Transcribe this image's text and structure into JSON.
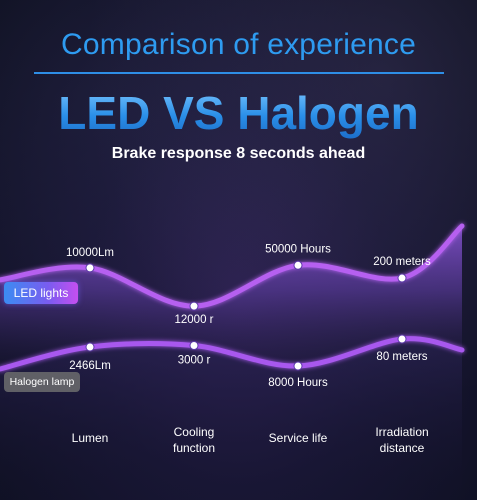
{
  "header": {
    "title": "Comparison of experience",
    "main_title": "LED VS Halogen",
    "subtitle": "Brake response 8 seconds ahead"
  },
  "colors": {
    "accent_blue": "#2e9bf0",
    "led_curve": "#b661f0",
    "halogen_curve": "#a858ee",
    "label_text": "#ffffff"
  },
  "chart_data": {
    "type": "line",
    "categories": [
      "Lumen",
      "Cooling function",
      "Service life",
      "Irradiation distance"
    ],
    "series": [
      {
        "name": "LED lights",
        "labels": [
          "10000Lm",
          "12000 r",
          "50000 Hours",
          "200 meters"
        ],
        "level": [
          0.79,
          0.34,
          0.82,
          0.67
        ]
      },
      {
        "name": "Halogen lamp",
        "labels": [
          "2466Lm",
          "3000 r",
          "8000 Hours",
          "80 meters"
        ],
        "level": [
          0.66,
          0.69,
          0.28,
          0.82
        ]
      }
    ],
    "xlabel": "",
    "ylabel": "",
    "legend": "left",
    "grid": false
  }
}
